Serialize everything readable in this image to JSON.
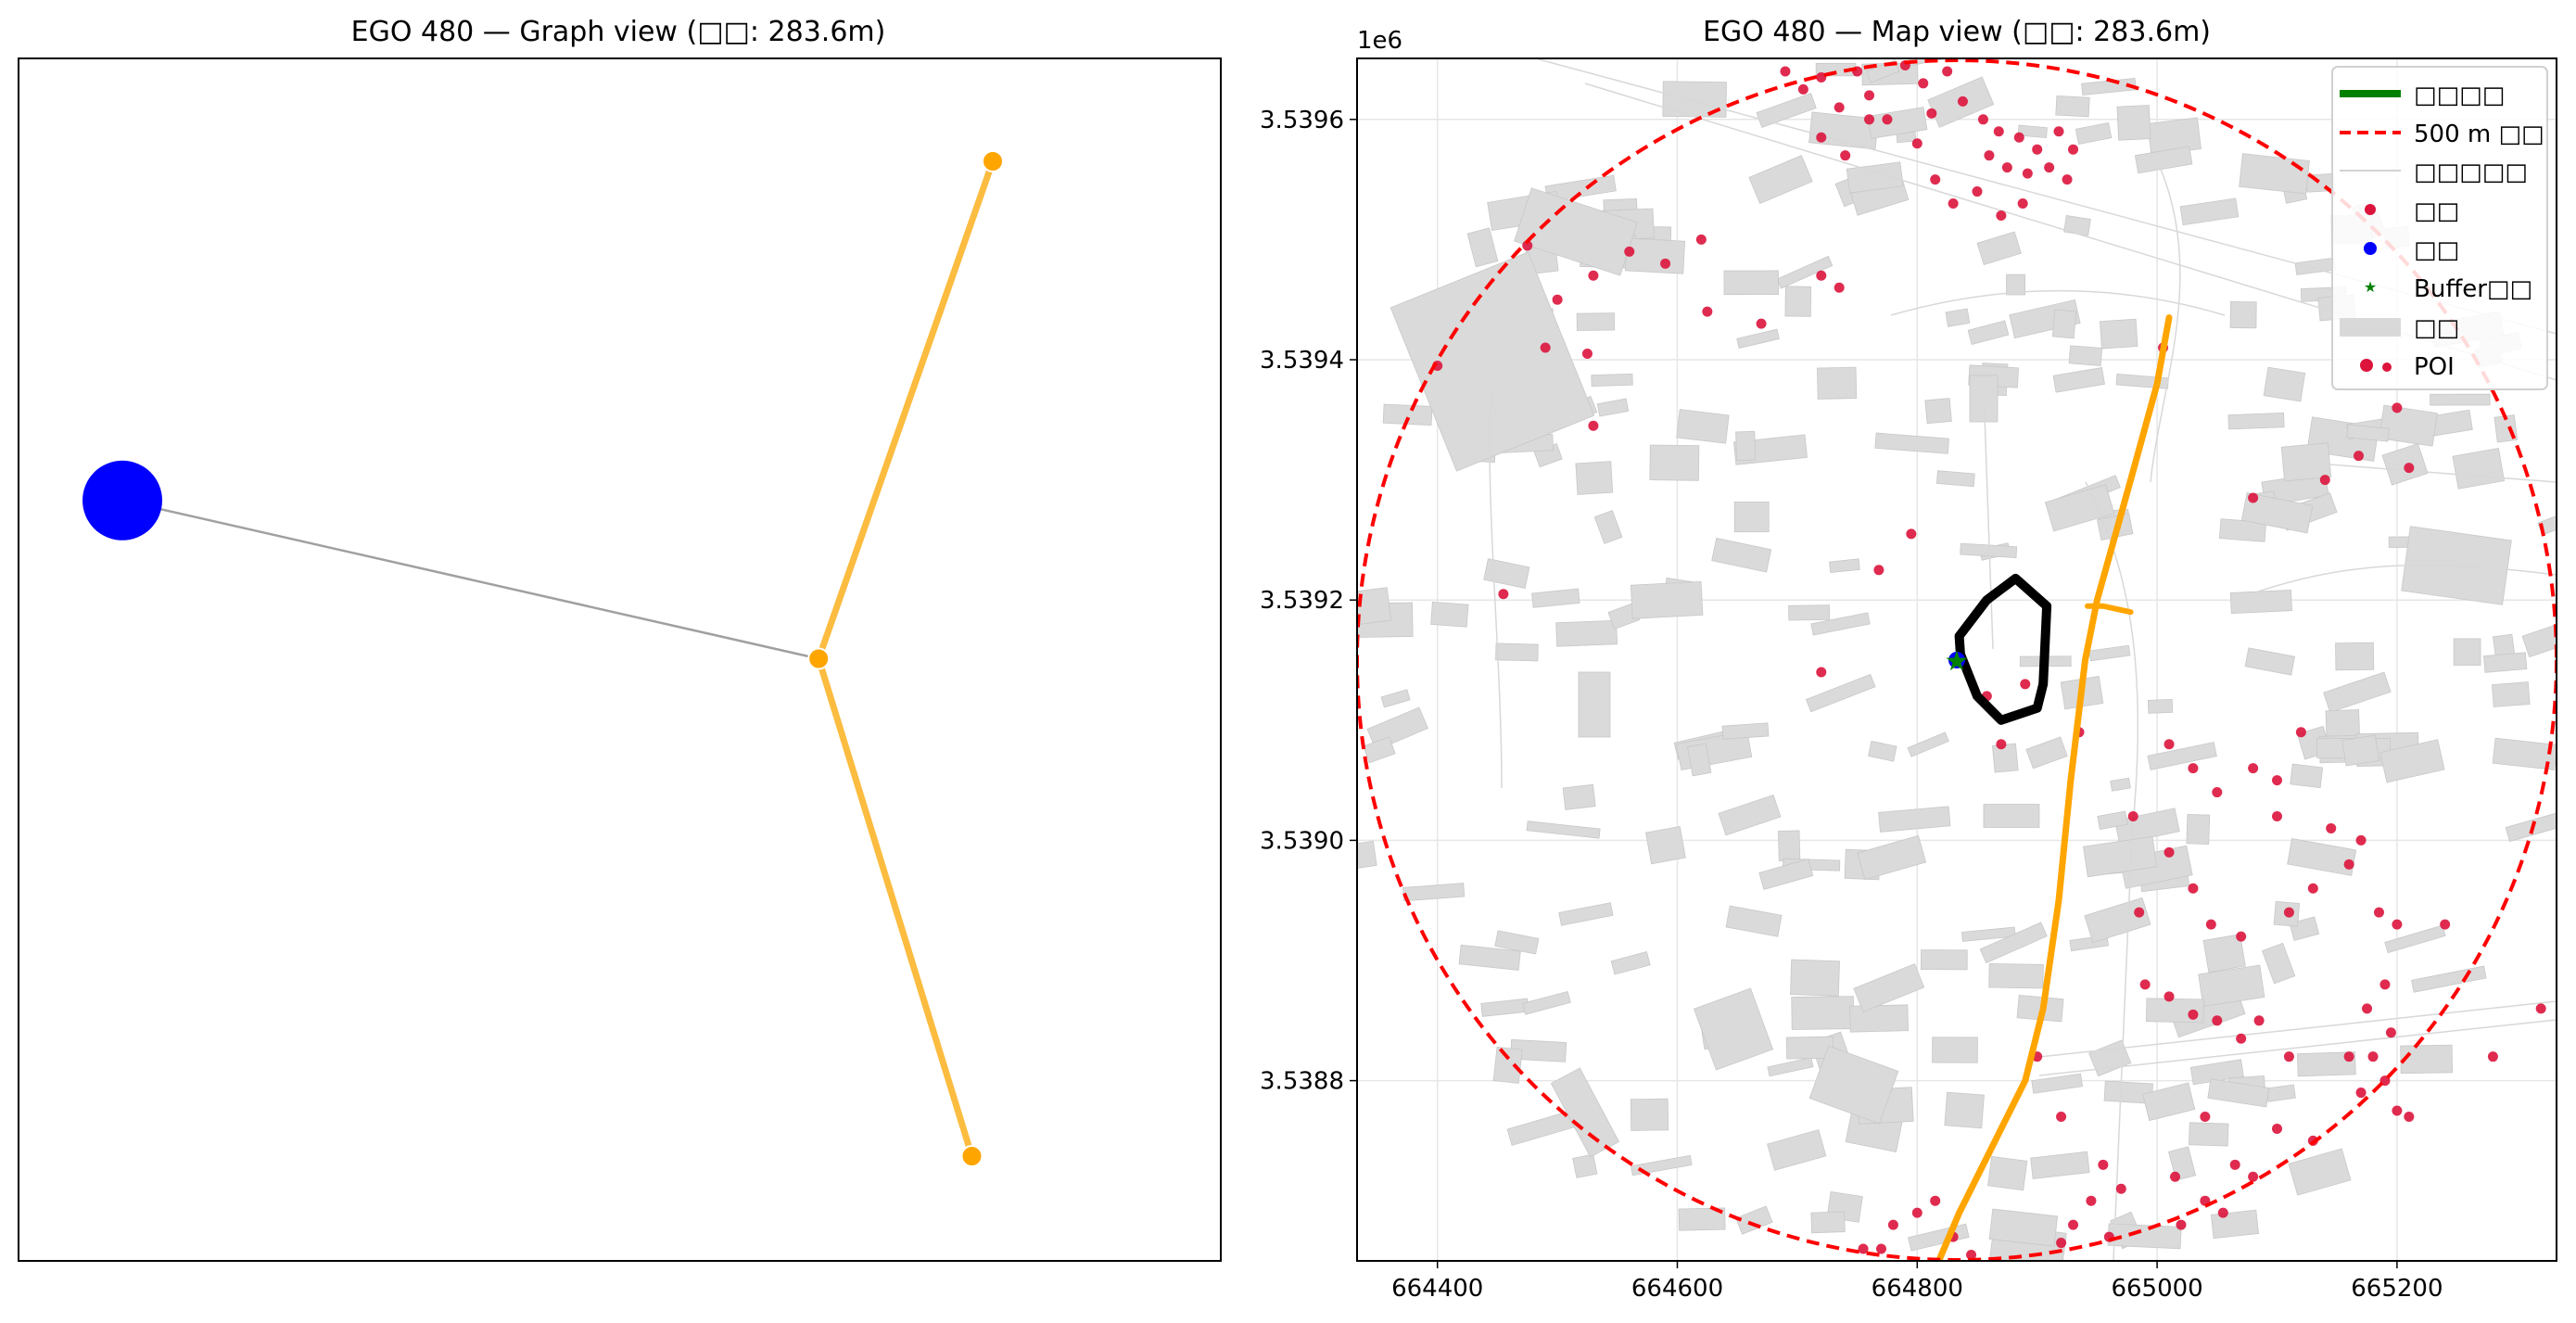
{
  "figure": {
    "panels": [
      {
        "title": "EGO 480 — Graph view (□□: 283.6m)"
      },
      {
        "title": "EGO 480 — Map view (□□: 283.6m)"
      }
    ]
  },
  "chart_data": [
    {
      "type": "scatter",
      "title": "EGO 480 — Graph view (□□: 283.6m)",
      "axes_visible": false,
      "x": [
        0.0,
        1.0,
        1.25,
        1.22
      ],
      "y": [
        2.45,
        2.1,
        3.2,
        1.0
      ],
      "nodes": [
        {
          "x": 0.0,
          "y": 2.45,
          "color": "#0000ff",
          "size": "large"
        },
        {
          "x": 1.0,
          "y": 2.1,
          "color": "#ffa500",
          "size": "small"
        },
        {
          "x": 1.25,
          "y": 3.2,
          "color": "#ffa500",
          "size": "small"
        },
        {
          "x": 1.22,
          "y": 1.0,
          "color": "#ffa500",
          "size": "small"
        }
      ],
      "edges": [
        {
          "from": 0,
          "to": 1,
          "color": "#a0a0a0"
        },
        {
          "from": 1,
          "to": 2,
          "color": "#fbbc40"
        },
        {
          "from": 1,
          "to": 3,
          "color": "#fbbc40"
        }
      ]
    },
    {
      "type": "scatter",
      "title": "EGO 480 — Map view (□□: 283.6m)",
      "x_ticks": [
        "664400",
        "664600",
        "664800",
        "665000",
        "665200"
      ],
      "y_ticks": [
        "3.5388",
        "3.5390",
        "3.5392",
        "3.5394",
        "3.5396"
      ],
      "y_offset_label": "1e6",
      "xlim": [
        664333,
        665333
      ],
      "ylim": [
        3538650,
        3539650
      ],
      "grid": true,
      "legend": {
        "placement": "top-right",
        "entries": [
          "□□□□",
          "500 m □□",
          "□□□□□",
          "□□",
          "□□",
          "Buffer□□",
          "□□",
          "POI"
        ]
      },
      "center": {
        "x": 664833,
        "y": 3539150
      },
      "buffer_radius_m": 500,
      "station": {
        "x": 664833,
        "y": 3539150
      },
      "route": [
        [
          664818,
          3538650
        ],
        [
          664835,
          3538690
        ],
        [
          664860,
          3538740
        ],
        [
          664890,
          3538800
        ],
        [
          664905,
          3538860
        ],
        [
          664918,
          3538950
        ],
        [
          664928,
          3539050
        ],
        [
          664940,
          3539150
        ],
        [
          664950,
          3539200
        ],
        [
          664978,
          3539300
        ],
        [
          665000,
          3539380
        ],
        [
          665010,
          3539435
        ]
      ],
      "route_spur": [
        [
          664942,
          3539195
        ],
        [
          664955,
          3539195
        ],
        [
          664978,
          3539190
        ]
      ],
      "buffer_outline": [
        [
          664835,
          3539170
        ],
        [
          664858,
          3539200
        ],
        [
          664882,
          3539218
        ],
        [
          664908,
          3539195
        ],
        [
          664905,
          3539130
        ],
        [
          664900,
          3539110
        ],
        [
          664870,
          3539100
        ],
        [
          664850,
          3539120
        ],
        [
          664836,
          3539155
        ]
      ],
      "poi": [
        [
          664690,
          3539640
        ],
        [
          664705,
          3539625
        ],
        [
          664720,
          3539635
        ],
        [
          664735,
          3539610
        ],
        [
          664750,
          3539640
        ],
        [
          664760,
          3539620
        ],
        [
          664775,
          3539600
        ],
        [
          664790,
          3539645
        ],
        [
          664805,
          3539630
        ],
        [
          664812,
          3539605
        ],
        [
          664825,
          3539640
        ],
        [
          664838,
          3539615
        ],
        [
          664855,
          3539600
        ],
        [
          664860,
          3539570
        ],
        [
          664868,
          3539590
        ],
        [
          664875,
          3539560
        ],
        [
          664885,
          3539585
        ],
        [
          664892,
          3539555
        ],
        [
          664900,
          3539575
        ],
        [
          664910,
          3539560
        ],
        [
          664918,
          3539590
        ],
        [
          664925,
          3539550
        ],
        [
          664930,
          3539575
        ],
        [
          664720,
          3539585
        ],
        [
          664740,
          3539570
        ],
        [
          664800,
          3539580
        ],
        [
          664815,
          3539550
        ],
        [
          664830,
          3539530
        ],
        [
          664850,
          3539540
        ],
        [
          664870,
          3539520
        ],
        [
          664888,
          3539530
        ],
        [
          664760,
          3539600
        ],
        [
          664475,
          3539495
        ],
        [
          664500,
          3539450
        ],
        [
          664530,
          3539470
        ],
        [
          664560,
          3539490
        ],
        [
          664590,
          3539480
        ],
        [
          664620,
          3539500
        ],
        [
          664625,
          3539440
        ],
        [
          664670,
          3539430
        ],
        [
          664720,
          3539470
        ],
        [
          664735,
          3539460
        ],
        [
          664490,
          3539410
        ],
        [
          664525,
          3539405
        ],
        [
          664400,
          3539395
        ],
        [
          664530,
          3539345
        ],
        [
          664455,
          3539205
        ],
        [
          664795,
          3539255
        ],
        [
          664768,
          3539225
        ],
        [
          664720,
          3539140
        ],
        [
          664858,
          3539120
        ],
        [
          664870,
          3539080
        ],
        [
          664890,
          3539130
        ],
        [
          664935,
          3539090
        ],
        [
          665005,
          3539410
        ],
        [
          665140,
          3539300
        ],
        [
          665200,
          3539360
        ],
        [
          665168,
          3539320
        ],
        [
          665210,
          3539310
        ],
        [
          665080,
          3539285
        ],
        [
          665100,
          3539050
        ],
        [
          665010,
          3539080
        ],
        [
          665030,
          3539060
        ],
        [
          665050,
          3539040
        ],
        [
          665080,
          3539060
        ],
        [
          665100,
          3539020
        ],
        [
          665120,
          3539090
        ],
        [
          665145,
          3539010
        ],
        [
          665170,
          3539000
        ],
        [
          664980,
          3539020
        ],
        [
          665010,
          3538990
        ],
        [
          665030,
          3538960
        ],
        [
          664985,
          3538940
        ],
        [
          665045,
          3538930
        ],
        [
          665070,
          3538920
        ],
        [
          665110,
          3538940
        ],
        [
          665130,
          3538960
        ],
        [
          665160,
          3538980
        ],
        [
          665185,
          3538940
        ],
        [
          665200,
          3538930
        ],
        [
          665190,
          3538880
        ],
        [
          665175,
          3538860
        ],
        [
          665195,
          3538840
        ],
        [
          665180,
          3538820
        ],
        [
          665190,
          3538800
        ],
        [
          665200,
          3538775
        ],
        [
          665170,
          3538790
        ],
        [
          664990,
          3538880
        ],
        [
          665010,
          3538870
        ],
        [
          665030,
          3538855
        ],
        [
          665050,
          3538850
        ],
        [
          665070,
          3538835
        ],
        [
          665085,
          3538850
        ],
        [
          665110,
          3538820
        ],
        [
          665040,
          3538770
        ],
        [
          665015,
          3538720
        ],
        [
          665065,
          3538730
        ],
        [
          665080,
          3538720
        ],
        [
          665040,
          3538700
        ],
        [
          665055,
          3538690
        ],
        [
          665020,
          3538680
        ],
        [
          664970,
          3538710
        ],
        [
          664955,
          3538730
        ],
        [
          664945,
          3538700
        ],
        [
          664930,
          3538680
        ],
        [
          664960,
          3538670
        ],
        [
          664920,
          3538665
        ],
        [
          664800,
          3538690
        ],
        [
          664780,
          3538680
        ],
        [
          664770,
          3538660
        ],
        [
          664815,
          3538700
        ],
        [
          664830,
          3538670
        ],
        [
          664845,
          3538655
        ],
        [
          664755,
          3538660
        ],
        [
          664920,
          3538770
        ],
        [
          664900,
          3538820
        ],
        [
          665240,
          3538930
        ],
        [
          665320,
          3538860
        ],
        [
          665280,
          3538820
        ],
        [
          665210,
          3538770
        ],
        [
          665160,
          3538820
        ],
        [
          665100,
          3538760
        ],
        [
          665130,
          3538750
        ]
      ]
    }
  ]
}
